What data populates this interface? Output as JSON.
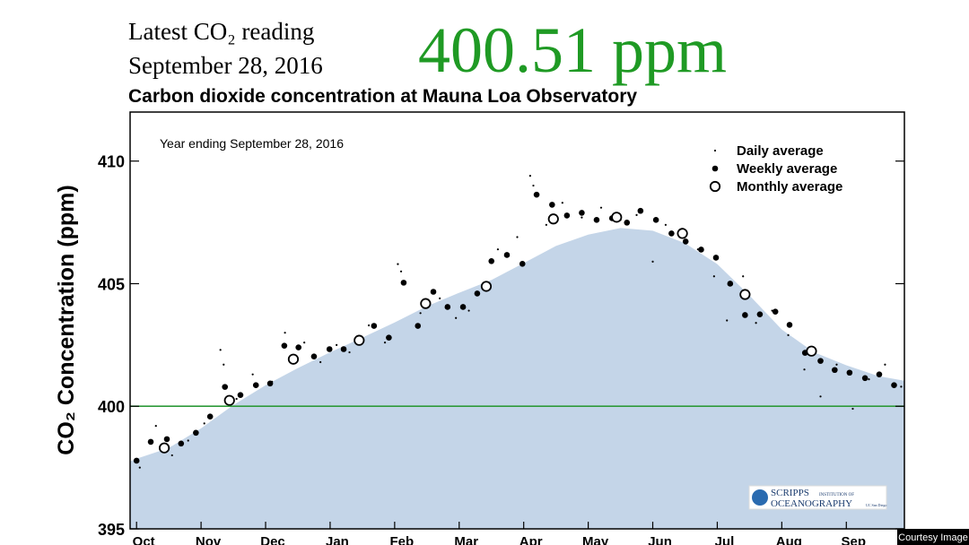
{
  "header": {
    "label": "Latest CO₂ reading",
    "date": "September 28, 2016",
    "reading": "400.51 ppm"
  },
  "logo": {
    "name": "SCRIPPS",
    "sub": "INSTITUTION OF",
    "name2": "OCEANOGRAPHY",
    "sub2": "UC San Diego"
  },
  "credit": "Courtesy Image",
  "chart_data": {
    "type": "scatter",
    "title": "Carbon dioxide concentration at Mauna Loa Observatory",
    "subtitle": "Year ending September 28, 2016",
    "y_label": "CO₂ Concentration (ppm)",
    "xlim": [
      -0.1,
      11.9
    ],
    "ylim": [
      395,
      412
    ],
    "xticks": [
      {
        "value": 0,
        "label": "Oct"
      },
      {
        "value": 1,
        "label": "Nov"
      },
      {
        "value": 2,
        "label": "Dec"
      },
      {
        "value": 3,
        "label": "Jan"
      },
      {
        "value": 4,
        "label": "Feb"
      },
      {
        "value": 5,
        "label": "Mar"
      },
      {
        "value": 6,
        "label": "Apr"
      },
      {
        "value": 7,
        "label": "May"
      },
      {
        "value": 8,
        "label": "Jun"
      },
      {
        "value": 9,
        "label": "Jul"
      },
      {
        "value": 10,
        "label": "Aug"
      },
      {
        "value": 11,
        "label": "Sep"
      }
    ],
    "yticks": [
      395,
      400,
      405,
      410
    ],
    "legend": "upper right",
    "reference_line": {
      "value": 400,
      "color": "#2e9a3a"
    },
    "series": [
      {
        "marker": "area",
        "color": "#c4d5e8",
        "x": [
          -0.1,
          0,
          0.5,
          1,
          1.5,
          2,
          2.5,
          3,
          3.5,
          4,
          4.5,
          5,
          5.5,
          6,
          6.5,
          7,
          7.5,
          8,
          8.5,
          9,
          9.5,
          10,
          10.5,
          11,
          11.5,
          11.9
        ],
        "values": [
          397.75,
          397.86,
          398.3,
          399.1,
          400.05,
          400.86,
          401.56,
          402.2,
          402.8,
          403.42,
          404.08,
          404.63,
          405.15,
          405.84,
          406.54,
          407.0,
          407.27,
          407.16,
          406.65,
          405.8,
          404.52,
          403.13,
          402.2,
          401.67,
          401.23,
          401.04
        ]
      },
      {
        "name": "Daily average",
        "marker": "small",
        "color": "#000000",
        "x": [
          0.05,
          0.3,
          0.55,
          0.8,
          1.05,
          1.3,
          1.35,
          1.55,
          1.8,
          2.1,
          2.3,
          2.6,
          2.85,
          3.1,
          3.3,
          3.6,
          3.85,
          4.05,
          4.1,
          4.4,
          4.7,
          4.95,
          5.15,
          5.4,
          5.6,
          5.9,
          6.1,
          6.15,
          6.35,
          6.6,
          6.9,
          7.2,
          7.5,
          7.75,
          8.0,
          8.2,
          8.45,
          8.7,
          8.95,
          9.15,
          9.4,
          9.6,
          9.85,
          10.1,
          10.35,
          10.6,
          10.85,
          11.1,
          11.35,
          11.6,
          11.85
        ],
        "values": [
          397.5,
          399.2,
          398.0,
          398.6,
          399.3,
          402.3,
          401.7,
          400.3,
          401.3,
          401.0,
          403.0,
          402.6,
          401.8,
          402.5,
          402.2,
          403.3,
          402.6,
          405.8,
          405.5,
          403.8,
          404.4,
          403.6,
          403.9,
          404.8,
          406.4,
          406.9,
          409.4,
          409.0,
          407.4,
          408.3,
          407.7,
          408.1,
          407.6,
          407.8,
          405.9,
          407.4,
          406.9,
          406.4,
          405.3,
          403.5,
          405.3,
          403.4,
          403.9,
          402.9,
          401.5,
          400.4,
          401.7,
          399.9,
          401.1,
          401.7,
          400.8
        ]
      },
      {
        "name": "Weekly average",
        "marker": "filled",
        "color": "#000000",
        "x": [
          0.0,
          0.22,
          0.47,
          0.69,
          0.92,
          1.14,
          1.37,
          1.61,
          1.85,
          2.07,
          2.29,
          2.51,
          2.75,
          2.99,
          3.21,
          3.45,
          3.68,
          3.91,
          4.14,
          4.36,
          4.6,
          4.82,
          5.06,
          5.28,
          5.5,
          5.74,
          5.98,
          6.2,
          6.44,
          6.67,
          6.9,
          7.13,
          7.37,
          7.6,
          7.81,
          8.05,
          8.29,
          8.51,
          8.75,
          8.98,
          9.2,
          9.43,
          9.66,
          9.9,
          10.12,
          10.36,
          10.6,
          10.82,
          11.05,
          11.29,
          11.51,
          11.74
        ],
        "values": [
          397.78,
          398.55,
          398.66,
          398.48,
          398.92,
          399.58,
          400.79,
          400.46,
          400.86,
          400.93,
          402.47,
          402.4,
          402.03,
          402.33,
          402.33,
          402.69,
          403.28,
          402.8,
          405.04,
          403.28,
          404.67,
          404.05,
          404.05,
          404.6,
          405.92,
          406.17,
          405.81,
          408.63,
          408.22,
          407.78,
          407.89,
          407.6,
          407.67,
          407.49,
          407.97,
          407.6,
          407.05,
          406.72,
          406.39,
          406.06,
          405.0,
          403.72,
          403.75,
          403.86,
          403.32,
          402.18,
          401.85,
          401.48,
          401.37,
          401.15,
          401.3,
          400.86
        ]
      },
      {
        "name": "Monthly average",
        "marker": "open",
        "color": "#000000",
        "x": [
          0.43,
          1.44,
          2.43,
          3.45,
          4.48,
          5.42,
          6.46,
          7.44,
          8.46,
          9.43,
          10.46
        ],
        "values": [
          398.3,
          400.24,
          401.92,
          402.69,
          404.19,
          404.89,
          407.64,
          407.71,
          407.05,
          404.56,
          402.25
        ]
      }
    ]
  }
}
